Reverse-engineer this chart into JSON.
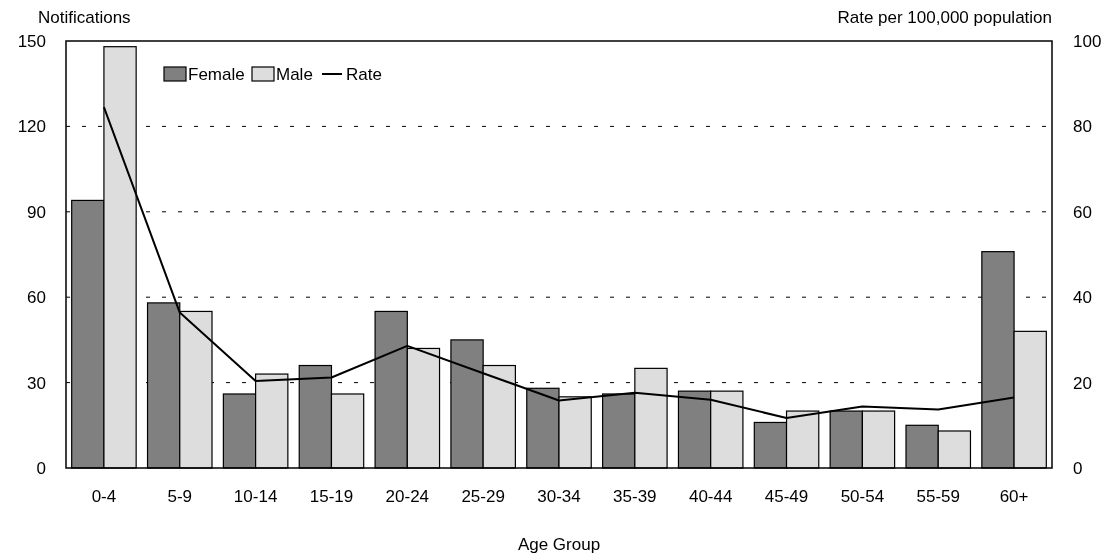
{
  "chart_data": {
    "type": "bar",
    "xlabel": "Age Group",
    "ylabel": "Notifications",
    "y2label": "Rate per 100,000 population",
    "categories": [
      "0-4",
      "5-9",
      "10-14",
      "15-19",
      "20-24",
      "25-29",
      "30-34",
      "35-39",
      "40-44",
      "45-49",
      "50-54",
      "55-59",
      "60+"
    ],
    "series": [
      {
        "name": "Female",
        "color": "#808080",
        "values": [
          94,
          58,
          26,
          36,
          55,
          45,
          28,
          26,
          27,
          16,
          20,
          15,
          76
        ]
      },
      {
        "name": "Male",
        "color": "#dddddd",
        "values": [
          148,
          55,
          33,
          26,
          42,
          36,
          25,
          35,
          27,
          20,
          20,
          13,
          48
        ]
      },
      {
        "name": "Rate",
        "type": "line",
        "axis": "y2",
        "color": "#000000",
        "values": [
          84.5,
          36.4,
          20.4,
          21.2,
          28.6,
          22.2,
          15.8,
          17.6,
          16,
          11.7,
          14.4,
          13.7,
          16.5
        ]
      }
    ],
    "ylim": [
      0,
      150
    ],
    "yticks": [
      0,
      30,
      60,
      90,
      120,
      150
    ],
    "y2lim": [
      0,
      100
    ],
    "y2ticks": [
      0,
      20,
      40,
      60,
      80,
      100
    ],
    "grid": "y",
    "legend": "top left",
    "marker": "none",
    "line_style": "solid"
  }
}
